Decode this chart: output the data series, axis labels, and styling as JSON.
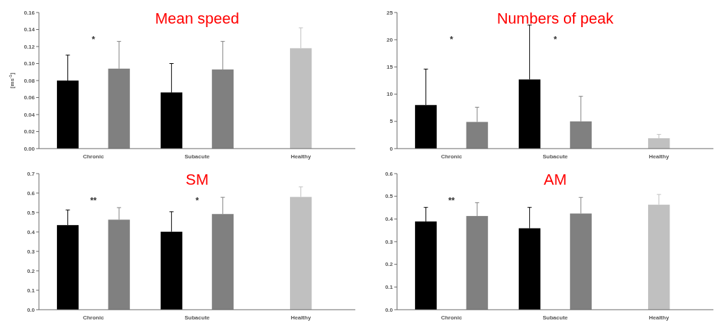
{
  "chart_data": [
    {
      "type": "bar",
      "title": "Mean speed",
      "ylabel": "[ms$^{-1}$]",
      "categories": [
        "Chronic",
        "Subacute",
        "Healthy"
      ],
      "ylim": [
        0,
        0.16
      ],
      "yticks": [
        {
          "value": 0,
          "label": "0.00"
        },
        {
          "value": 0.02,
          "label": "0.02"
        },
        {
          "value": 0.04,
          "label": "0.04"
        },
        {
          "value": 0.06,
          "label": "0.06"
        },
        {
          "value": 0.08,
          "label": "0.08"
        },
        {
          "value": 0.1,
          "label": "0.10"
        },
        {
          "value": 0.12,
          "label": "0.12"
        },
        {
          "value": 0.14,
          "label": "0.14"
        },
        {
          "value": 0.16,
          "label": "0.16"
        }
      ],
      "grid": false,
      "series": [
        {
          "color": "#000000",
          "values": [
            0.08,
            0.066,
            null
          ],
          "errors": [
            [
              0.08,
              0.11
            ],
            [
              0.066,
              0.1
            ],
            null
          ]
        },
        {
          "color": "#808080",
          "values": [
            0.094,
            0.093,
            null
          ],
          "errors": [
            [
              0.094,
              0.126
            ],
            [
              0.093,
              0.126
            ],
            null
          ]
        },
        {
          "color": "#c0c0c0",
          "values": [
            null,
            null,
            0.118
          ],
          "errors": [
            null,
            null,
            [
              0.118,
              0.142
            ]
          ]
        }
      ],
      "annotations": [
        "*"
      ]
    },
    {
      "type": "bar",
      "title": "Numbers of peak",
      "categories": [
        "Chronic",
        "Subacute",
        "Healthy"
      ],
      "ylim": [
        0,
        25
      ],
      "yticks": [
        0,
        5,
        10,
        15,
        20,
        25
      ],
      "grid": false,
      "series": [
        {
          "color": "#000000",
          "values": [
            8,
            12.7,
            null
          ],
          "errors": [
            [
              8,
              14.6
            ],
            [
              12.7,
              22.7
            ],
            null
          ]
        },
        {
          "color": "#808080",
          "values": [
            4.9,
            5,
            null
          ],
          "errors": [
            [
              4.9,
              7.6
            ],
            [
              5,
              9.6
            ],
            null
          ]
        },
        {
          "color": "#c0c0c0",
          "values": [
            null,
            null,
            1.9
          ],
          "errors": [
            null,
            null,
            [
              1.9,
              2.6
            ]
          ]
        }
      ],
      "annotations": [
        "*",
        "*"
      ]
    },
    {
      "type": "bar",
      "title": "SM",
      "categories": [
        "Chronic",
        "Subacute",
        "Healthy"
      ],
      "ylim": [
        0,
        0.7
      ],
      "yticks": [
        {
          "value": 0,
          "label": "0.0"
        },
        {
          "value": 0.1,
          "label": "0.1"
        },
        {
          "value": 0.2,
          "label": "0.2"
        },
        {
          "value": 0.3,
          "label": "0.3"
        },
        {
          "value": 0.4,
          "label": "0.4"
        },
        {
          "value": 0.5,
          "label": "0.5"
        },
        {
          "value": 0.6,
          "label": "0.6"
        },
        {
          "value": 0.7,
          "label": "0.7"
        }
      ],
      "grid": false,
      "series": [
        {
          "color": "#000000",
          "values": [
            0.435,
            0.401,
            null
          ],
          "errors": [
            [
              0.435,
              0.513
            ],
            [
              0.401,
              0.504
            ],
            null
          ]
        },
        {
          "color": "#808080",
          "values": [
            0.463,
            0.492,
            null
          ],
          "errors": [
            [
              0.463,
              0.525
            ],
            [
              0.492,
              0.578
            ],
            null
          ]
        },
        {
          "color": "#c0c0c0",
          "values": [
            null,
            null,
            0.58
          ],
          "errors": [
            null,
            null,
            [
              0.58,
              0.632
            ]
          ]
        }
      ],
      "annotations": [
        "**",
        "*"
      ]
    },
    {
      "type": "bar",
      "title": "AM",
      "categories": [
        "Chronic",
        "Subacute",
        "Healthy"
      ],
      "ylim": [
        0,
        0.6
      ],
      "yticks": [
        {
          "value": 0,
          "label": "0.0"
        },
        {
          "value": 0.1,
          "label": "0.1"
        },
        {
          "value": 0.2,
          "label": "0.2"
        },
        {
          "value": 0.3,
          "label": "0.3"
        },
        {
          "value": 0.4,
          "label": "0.4"
        },
        {
          "value": 0.5,
          "label": "0.5"
        },
        {
          "value": 0.6,
          "label": "0.6"
        }
      ],
      "grid": false,
      "series": [
        {
          "color": "#000000",
          "values": [
            0.389,
            0.359,
            null
          ],
          "errors": [
            [
              0.389,
              0.451
            ],
            [
              0.359,
              0.451
            ],
            null
          ]
        },
        {
          "color": "#808080",
          "values": [
            0.413,
            0.424,
            null
          ],
          "errors": [
            [
              0.413,
              0.472
            ],
            [
              0.424,
              0.495
            ],
            null
          ]
        },
        {
          "color": "#c0c0c0",
          "values": [
            null,
            null,
            0.463
          ],
          "errors": [
            null,
            null,
            [
              0.463,
              0.508
            ]
          ]
        }
      ],
      "annotations": [
        "**"
      ]
    }
  ]
}
